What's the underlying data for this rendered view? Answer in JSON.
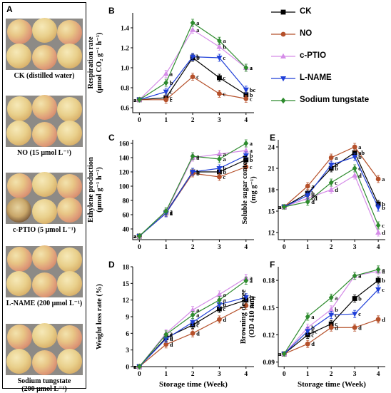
{
  "panelA": {
    "letter": "A",
    "photos": [
      {
        "caption": [
          "CK (distilled water)"
        ]
      },
      {
        "caption": [
          "NO (15 μmol L⁻¹)"
        ]
      },
      {
        "caption": [
          "c-PTIO (5 μmol L⁻¹)"
        ]
      },
      {
        "caption": [
          "L-NAME (200 μmol L⁻¹)"
        ]
      },
      {
        "caption": [
          "Sodium tungstate",
          "(200 μmol L⁻¹)"
        ]
      }
    ]
  },
  "legend": [
    {
      "label": "CK",
      "color": "#000000",
      "marker": "square"
    },
    {
      "label": "NO",
      "color": "#b5502a",
      "marker": "circle"
    },
    {
      "label": "c-PTIO",
      "color": "#d58ce8",
      "marker": "triangle-up"
    },
    {
      "label": "L-NAME",
      "color": "#1f3fd8",
      "marker": "triangle-down"
    },
    {
      "label": "Sodium tungstate",
      "color": "#2e8b2e",
      "marker": "diamond"
    }
  ],
  "chart_data": [
    {
      "letter": "B",
      "type": "line",
      "ylabel": [
        "Respiration rate",
        "(μmol CO₂ g⁻¹ h⁻¹)"
      ],
      "xlabel": "",
      "x": [
        0,
        1,
        2,
        3,
        4
      ],
      "xticks": [
        "0",
        "1",
        "2",
        "3",
        "4"
      ],
      "ylim": [
        0.55,
        1.55
      ],
      "yticks": [
        "0.6",
        "0.8",
        "1.0",
        "1.2",
        "1.4"
      ],
      "ytickvals": [
        0.6,
        0.8,
        1.0,
        1.2,
        1.4
      ],
      "series": [
        {
          "name": "CK",
          "values": [
            0.68,
            0.7,
            1.1,
            0.9,
            0.73
          ],
          "letters": [
            "a",
            "c",
            "b",
            "c",
            "b"
          ]
        },
        {
          "name": "NO",
          "values": [
            0.68,
            0.68,
            0.91,
            0.74,
            0.69
          ],
          "letters": [
            "a",
            "c",
            "c",
            "c",
            "c"
          ]
        },
        {
          "name": "c-PTIO",
          "values": [
            0.68,
            0.94,
            1.38,
            1.21,
            1.0
          ],
          "letters": [
            "a",
            "a",
            "a",
            "b",
            "a"
          ]
        },
        {
          "name": "L-NAME",
          "values": [
            0.68,
            0.76,
            1.11,
            1.1,
            0.78
          ],
          "letters": [
            "a",
            "c",
            "b",
            "c",
            "bc"
          ]
        },
        {
          "name": "Sodium tungstate",
          "values": [
            0.68,
            0.85,
            1.45,
            1.27,
            1.0
          ],
          "letters": [
            "a",
            "b",
            "a",
            "a",
            "a"
          ]
        }
      ]
    },
    {
      "letter": "C",
      "type": "line",
      "ylabel": [
        "Ethylene production",
        "(μmol g⁻¹ h⁻¹)"
      ],
      "xlabel": "",
      "x": [
        0,
        1,
        2,
        3,
        4
      ],
      "xticks": [
        "0",
        "1",
        "2",
        "3",
        "4"
      ],
      "ylim": [
        25,
        165
      ],
      "yticks": [
        "40",
        "60",
        "80",
        "100",
        "120",
        "140",
        "160"
      ],
      "ytickvals": [
        40,
        60,
        80,
        100,
        120,
        140,
        160
      ],
      "series": [
        {
          "name": "CK",
          "values": [
            30,
            63,
            120,
            120,
            137
          ],
          "letters": [
            "a",
            "a",
            "b",
            "b",
            "b"
          ]
        },
        {
          "name": "NO",
          "values": [
            30,
            62,
            118,
            113,
            127
          ],
          "letters": [
            "a",
            "a",
            "b",
            "c",
            "c"
          ]
        },
        {
          "name": "c-PTIO",
          "values": [
            30,
            63,
            140,
            145,
            150
          ],
          "letters": [
            "a",
            "a",
            "a",
            "a",
            "a"
          ]
        },
        {
          "name": "L-NAME",
          "values": [
            30,
            62,
            120,
            125,
            143
          ],
          "letters": [
            "a",
            "a",
            "b",
            "b",
            "b"
          ]
        },
        {
          "name": "Sodium tungstate",
          "values": [
            30,
            65,
            142,
            138,
            160
          ],
          "letters": [
            "a",
            "a",
            "a",
            "a",
            "a"
          ]
        }
      ]
    },
    {
      "letter": "D",
      "type": "line",
      "ylabel": [
        "Weight loss rate (%)"
      ],
      "xlabel": "Storage time (Week)",
      "x": [
        0,
        1,
        2,
        3,
        4
      ],
      "xticks": [
        "0",
        "1",
        "2",
        "3",
        "4"
      ],
      "ylim": [
        0,
        18
      ],
      "yticks": [
        "0",
        "3",
        "6",
        "9",
        "12",
        "15",
        "18"
      ],
      "ytickvals": [
        0,
        3,
        6,
        9,
        12,
        15,
        18
      ],
      "series": [
        {
          "name": "CK",
          "values": [
            0,
            5.2,
            7.5,
            10.4,
            12.0
          ],
          "letters": [
            "a",
            "b",
            "c",
            "c",
            "c"
          ]
        },
        {
          "name": "NO",
          "values": [
            0,
            4.0,
            6.0,
            8.5,
            11.0
          ],
          "letters": [
            "a",
            "d",
            "d",
            "d",
            "d"
          ]
        },
        {
          "name": "c-PTIO",
          "values": [
            0,
            6.0,
            10.2,
            13.0,
            16.0
          ],
          "letters": [
            "a",
            "a",
            "a",
            "a",
            "a"
          ]
        },
        {
          "name": "L-NAME",
          "values": [
            0,
            5.0,
            8.0,
            11.2,
            12.5
          ],
          "letters": [
            "a",
            "d",
            "b",
            "b",
            "bc"
          ]
        },
        {
          "name": "Sodium tungstate",
          "values": [
            0,
            5.8,
            9.3,
            12.0,
            15.5
          ],
          "letters": [
            "a",
            "a",
            "a",
            "a",
            "a"
          ]
        }
      ]
    },
    {
      "letter": "E",
      "type": "line",
      "ylabel": [
        "Soluble sugar content",
        "(mg g⁻¹)"
      ],
      "xlabel": "",
      "x": [
        0,
        1,
        2,
        3,
        4
      ],
      "xticks": [
        "0",
        "1",
        "2",
        "3",
        "4"
      ],
      "ylim": [
        11,
        25
      ],
      "yticks": [
        "12",
        "15",
        "18",
        "21",
        "24"
      ],
      "ytickvals": [
        12,
        15,
        18,
        21,
        24
      ],
      "series": [
        {
          "name": "CK",
          "values": [
            15.6,
            17.5,
            21.0,
            23.2,
            16.0
          ],
          "letters": [
            "a",
            "b",
            "b",
            "ab",
            "b"
          ]
        },
        {
          "name": "NO",
          "values": [
            15.6,
            18.5,
            22.5,
            24.0,
            19.5
          ],
          "letters": [
            "a",
            "a",
            "a",
            "a",
            "a"
          ]
        },
        {
          "name": "c-PTIO",
          "values": [
            15.6,
            16.8,
            18.0,
            20.0,
            12.0
          ],
          "letters": [
            "a",
            "cd",
            "d",
            "d",
            "d"
          ]
        },
        {
          "name": "L-NAME",
          "values": [
            15.6,
            17.2,
            21.5,
            22.6,
            15.5
          ],
          "letters": [
            "a",
            "bc",
            "b",
            "b",
            "b"
          ]
        },
        {
          "name": "Sodium tungstate",
          "values": [
            15.6,
            16.3,
            19.0,
            21.0,
            13.0
          ],
          "letters": [
            "a",
            "d",
            "c",
            "c",
            "c"
          ]
        }
      ]
    },
    {
      "letter": "F",
      "type": "line",
      "ylabel": [
        "Browning degree",
        "(OD 410 nm)"
      ],
      "xlabel": "Storage time (Week)",
      "x": [
        0,
        1,
        2,
        3,
        4
      ],
      "xticks": [
        "0",
        "1",
        "2",
        "3",
        "4"
      ],
      "ylim": [
        0.085,
        0.195
      ],
      "yticks": [
        "0.09",
        "0.12",
        "0.15",
        "0.18"
      ],
      "ytickvals": [
        0.09,
        0.12,
        0.15,
        0.18
      ],
      "series": [
        {
          "name": "CK",
          "values": [
            0.099,
            0.12,
            0.132,
            0.16,
            0.18
          ],
          "letters": [
            "a",
            "c",
            "c",
            "b",
            "b"
          ]
        },
        {
          "name": "NO",
          "values": [
            0.099,
            0.11,
            0.128,
            0.128,
            0.137
          ],
          "letters": [
            "a",
            "d",
            "d",
            "d",
            "d"
          ]
        },
        {
          "name": "c-PTIO",
          "values": [
            0.099,
            0.128,
            0.148,
            0.185,
            0.19
          ],
          "letters": [
            "a",
            "b",
            "b",
            "a",
            "a"
          ]
        },
        {
          "name": "L-NAME",
          "values": [
            0.099,
            0.124,
            0.142,
            0.143,
            0.17
          ],
          "letters": [
            "a",
            "bc",
            "c",
            "c",
            "c"
          ]
        },
        {
          "name": "Sodium tungstate",
          "values": [
            0.099,
            0.14,
            0.161,
            0.185,
            0.192
          ],
          "letters": [
            "a",
            "a",
            "a",
            "a",
            "a"
          ]
        }
      ]
    }
  ]
}
